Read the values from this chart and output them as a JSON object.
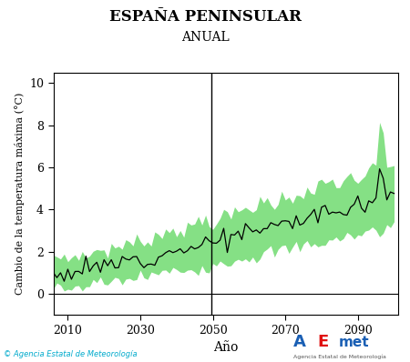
{
  "title": "ESPAÑA PENINSULAR",
  "subtitle": "ANUAL",
  "xlabel": "Año",
  "ylabel": "Cambio de la temperatura máxima (°C)",
  "ylim": [
    -1,
    10.5
  ],
  "xlim": [
    2006,
    2101
  ],
  "yticks": [
    0,
    2,
    4,
    6,
    8,
    10
  ],
  "xticks": [
    2010,
    2030,
    2050,
    2070,
    2090
  ],
  "vline_x": 2049.5,
  "hline_y": 0,
  "band_color": "#5cd65c",
  "band_alpha": 0.75,
  "line_color": "#000000",
  "background_color": "#ffffff",
  "copyright_text": "© Agencia Estatal de Meteorología",
  "year_start": 2006,
  "year_end": 2100,
  "seed": 42
}
